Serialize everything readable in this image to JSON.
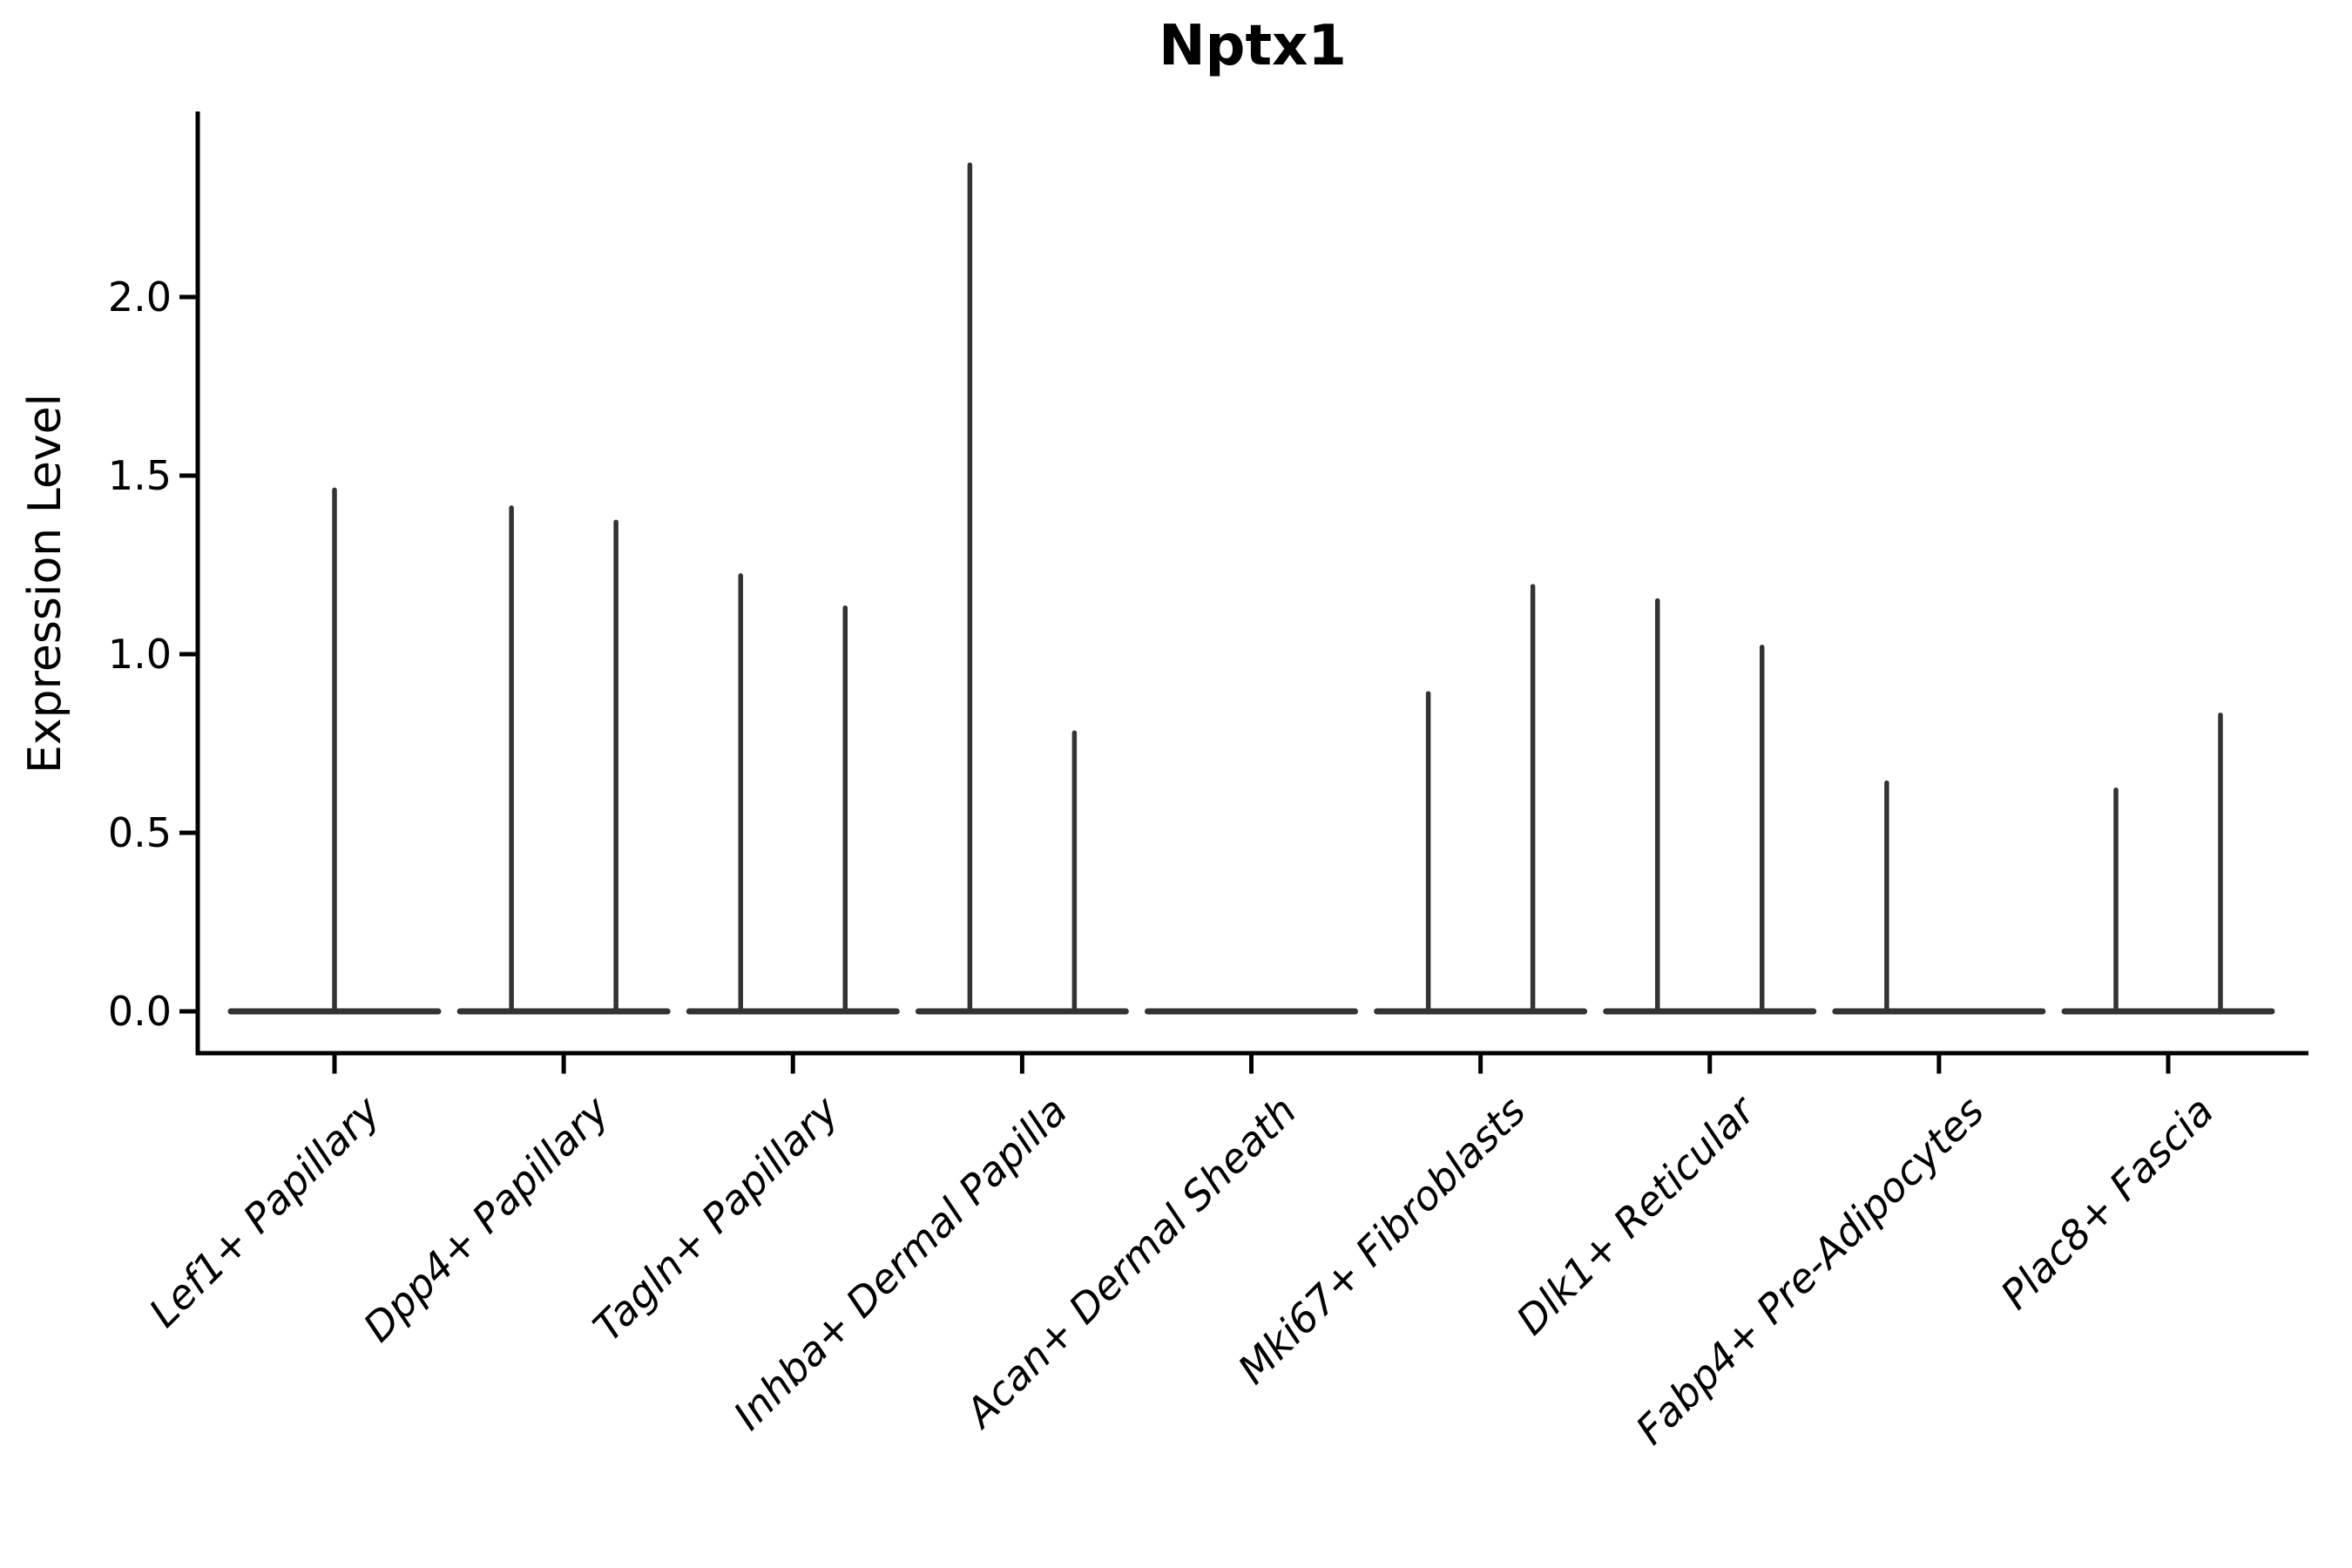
{
  "title": "Nptx1",
  "chart_data": {
    "type": "violin",
    "title": "Nptx1",
    "ylabel": "Expression Level",
    "xlabel": "",
    "ylim": [
      0,
      2.51
    ],
    "y_ticks": [
      0.0,
      0.5,
      1.0,
      1.5,
      2.0
    ],
    "grid": false,
    "legend": null,
    "description": "Collapsed violin plot of Nptx1 expression; each category shows a flat baseline at 0 with thin spikes up to the maximum expression. Most categories contain two side-by-side violins.",
    "categories": [
      "Lef1+ Papillary",
      "Dpp4+ Papillary",
      "Tagln+ Papillary",
      "Inhba+ Dermal Papilla",
      "Acan+ Dermal Sheath",
      "Mki67+ Fibroblasts",
      "Dlk1+ Reticular",
      "Fabp4+ Pre-Adipocytes",
      "Plac8+ Fascia"
    ],
    "groups": [
      {
        "category": "Lef1+ Papillary",
        "violins": [
          {
            "side": "full",
            "max": 1.46
          }
        ]
      },
      {
        "category": "Dpp4+ Papillary",
        "violins": [
          {
            "side": "left",
            "max": 1.41
          },
          {
            "side": "right",
            "max": 1.37
          }
        ]
      },
      {
        "category": "Tagln+ Papillary",
        "violins": [
          {
            "side": "left",
            "max": 1.22
          },
          {
            "side": "right",
            "max": 1.13
          }
        ]
      },
      {
        "category": "Inhba+ Dermal Papilla",
        "violins": [
          {
            "side": "left",
            "max": 2.37
          },
          {
            "side": "right",
            "max": 0.78
          }
        ]
      },
      {
        "category": "Acan+ Dermal Sheath",
        "violins": []
      },
      {
        "category": "Mki67+ Fibroblasts",
        "violins": [
          {
            "side": "left",
            "max": 0.89
          },
          {
            "side": "right",
            "max": 1.19
          }
        ]
      },
      {
        "category": "Dlk1+ Reticular",
        "violins": [
          {
            "side": "left",
            "max": 1.15
          },
          {
            "side": "right",
            "max": 1.02
          }
        ]
      },
      {
        "category": "Fabp4+ Pre-Adipocytes",
        "violins": [
          {
            "side": "left",
            "max": 0.64
          }
        ]
      },
      {
        "category": "Plac8+ Fascia",
        "violins": [
          {
            "side": "left",
            "max": 0.62
          },
          {
            "side": "right",
            "max": 0.83
          }
        ]
      }
    ],
    "colors": {
      "line": "#333333",
      "axis": "#000000",
      "text": "#000000",
      "background": "#ffffff"
    }
  }
}
